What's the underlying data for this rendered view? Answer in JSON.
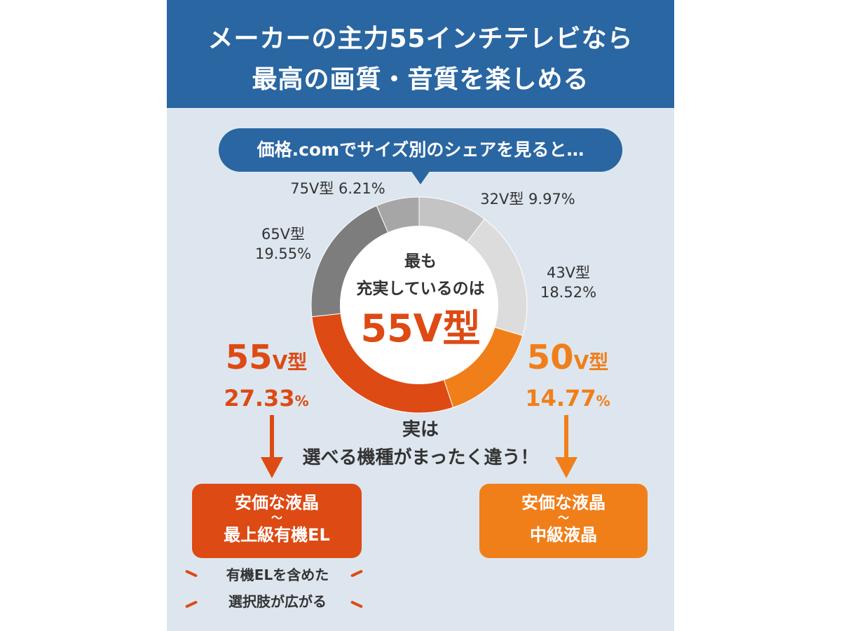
{
  "header": {
    "title_line1": "メーカーの主力55インチテレビなら",
    "title_line2": "最高の画質・音質を楽しめる"
  },
  "bubble": {
    "text": "価格.comでサイズ別のシェアを見ると…"
  },
  "chart_data": {
    "type": "pie",
    "style": "donut",
    "categories": [
      "32V型",
      "43V型",
      "50V型",
      "55V型",
      "65V型",
      "75V型"
    ],
    "values": [
      9.97,
      18.52,
      14.77,
      27.33,
      19.55,
      6.21
    ],
    "unit": "%",
    "colors": [
      "#c4c4c4",
      "#dcdcdc",
      "#f07f1a",
      "#dd4a14",
      "#7d7d7d",
      "#a6a6a6"
    ],
    "labels": [
      {
        "name": "32V型",
        "value": "9.97%"
      },
      {
        "name": "43V型",
        "value": "18.52%"
      },
      {
        "name": "50V型",
        "value": "14.77%"
      },
      {
        "name": "55V型",
        "value": "27.33%"
      },
      {
        "name": "65V型",
        "value": "19.55%"
      },
      {
        "name": "75V型",
        "value": "6.21%"
      }
    ]
  },
  "center": {
    "line1": "最も",
    "line2": "充実しているのは",
    "highlight": "55V型"
  },
  "big_labels": {
    "left_size": "55",
    "left_unit": "V型",
    "left_percent": "27.33",
    "right_size": "50",
    "right_unit": "V型",
    "right_percent": "14.77",
    "percent_sign": "%"
  },
  "middle_text": {
    "line1": "実は",
    "line2": "選べる機種がまったく違う！"
  },
  "left_box": {
    "line1": "安価な液晶",
    "line2": "～",
    "line3": "最上級有機EL"
  },
  "right_box": {
    "line1": "安価な液晶",
    "line2": "～",
    "line3": "中級液晶"
  },
  "note": {
    "line1": "有機ELを含めた",
    "line2": "選択肢が広がる"
  },
  "colors": {
    "header_blue": "#2a66a1",
    "background": "#dde6ee",
    "accent_red": "#dd4a14",
    "accent_orange": "#f07f1a"
  }
}
